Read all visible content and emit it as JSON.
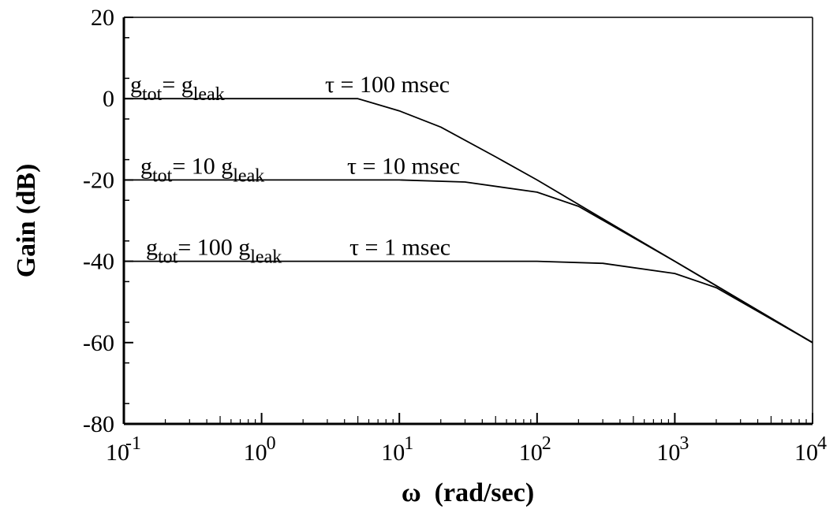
{
  "chart_data": {
    "type": "line",
    "xlabel": "ω  (rad/sec)",
    "ylabel": "Gain (dB)",
    "xscale": "log",
    "xlim": [
      0.1,
      10000
    ],
    "ylim": [
      -80,
      20
    ],
    "y_major_ticks": [
      20,
      0,
      -20,
      -40,
      -60,
      -80
    ],
    "y_tick_labels": [
      "20",
      "0",
      "-20",
      "-40",
      "-60",
      "-80"
    ],
    "x_tick_labels": [
      {
        "base": "10",
        "exp": "-1"
      },
      {
        "base": "10",
        "exp": "0"
      },
      {
        "base": "10",
        "exp": "1"
      },
      {
        "base": "10",
        "exp": "2"
      },
      {
        "base": "10",
        "exp": "3"
      },
      {
        "base": "10",
        "exp": "4"
      }
    ],
    "grid": false,
    "series": [
      {
        "tau": 0.1,
        "dc_gain_db": 0,
        "label_parts": {
          "g1": "g",
          "s1": "tot",
          "eq": "= ",
          "coef": "",
          "g2": "g",
          "s2": "leak",
          "tau_text": "τ = 100 msec"
        },
        "x": [
          0.1,
          1,
          5,
          10,
          20,
          50,
          100,
          1000,
          10000
        ],
        "y": [
          0,
          0,
          0,
          -3,
          -7,
          -14.3,
          -20,
          -40,
          -60
        ]
      },
      {
        "tau": 0.01,
        "dc_gain_db": -20,
        "label_parts": {
          "g1": "g",
          "s1": "tot",
          "eq": "= ",
          "coef": "10 ",
          "g2": "g",
          "s2": "leak",
          "tau_text": "τ = 10 msec"
        },
        "x": [
          0.1,
          1,
          10,
          30,
          100,
          200,
          1000,
          10000
        ],
        "y": [
          -20,
          -20,
          -20,
          -20.5,
          -23,
          -26.5,
          -40,
          -60
        ]
      },
      {
        "tau": 0.001,
        "dc_gain_db": -40,
        "label_parts": {
          "g1": "g",
          "s1": "tot",
          "eq": "= ",
          "coef": "100 ",
          "g2": "g",
          "s2": "leak",
          "tau_text": "τ = 1 msec"
        },
        "x": [
          0.1,
          1,
          10,
          100,
          300,
          1000,
          2000,
          10000
        ],
        "y": [
          -40,
          -40,
          -40,
          -40,
          -40.5,
          -43,
          -46.5,
          -60
        ]
      }
    ]
  }
}
